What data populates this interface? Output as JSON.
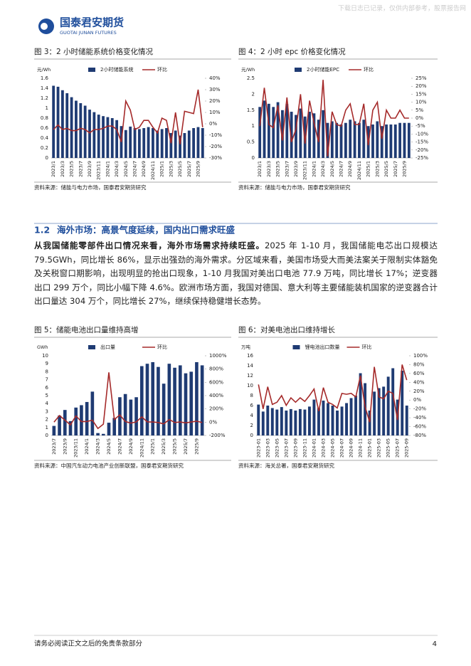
{
  "header": {
    "logo_cn": "国泰君安期货",
    "logo_en": "GUOTAI JUNAN FUTURES",
    "watermark_top": "下载日志已记录，仅供内部参考，股票报告网"
  },
  "figures": [
    {
      "caption": "图 3：2 小时储能系统价格变化情况",
      "source": "资料来源：储能与电力市场，国泰君安期货研究",
      "chart": {
        "type": "bar_line",
        "unit": "元/Wh",
        "categories": [
          "2023/1",
          null,
          "2023/3",
          null,
          "2023/5",
          null,
          "2023/7",
          null,
          "2023/9",
          null,
          "2023/11",
          null,
          "2024/1",
          null,
          "2024/3",
          null,
          "2024/5",
          null,
          "2024/7",
          null,
          "2024/9",
          null,
          "2024/11",
          null,
          "2025/1",
          null,
          "2025/3",
          null,
          "2025/5",
          null,
          "2025/7",
          null,
          "2025/9",
          null
        ],
        "series": [
          {
            "name": "2小时储能系统",
            "color": "#1f3b73",
            "values": [
              1.45,
              1.43,
              1.36,
              1.3,
              1.22,
              1.15,
              1.1,
              1.05,
              0.97,
              0.92,
              0.87,
              0.84,
              0.82,
              0.8,
              0.76,
              0.64,
              0.56,
              0.63,
              0.6,
              0.58,
              0.6,
              0.62,
              0.6,
              0.55,
              0.58,
              0.6,
              0.5,
              0.55,
              0.45,
              0.5,
              0.55,
              0.6,
              0.62,
              0.6
            ]
          },
          {
            "name": "环比",
            "color": "#a52a2a",
            "axis": "y2",
            "values": [
              -5,
              -1,
              -5,
              -4,
              -6,
              -6,
              -4,
              -5,
              -8,
              -5,
              -5,
              -4,
              -2,
              -2,
              -5,
              -16,
              20,
              12,
              -5,
              -3,
              3,
              3,
              -3,
              -8,
              5,
              3,
              -17,
              10,
              -18,
              11,
              10,
              9,
              30,
              -3
            ]
          }
        ],
        "ylim": [
          0,
          1.6
        ],
        "yticks": [
          0,
          0.2,
          0.4,
          0.6,
          0.8,
          1,
          1.2,
          1.4,
          1.6
        ],
        "y2lim": [
          -30,
          40
        ],
        "y2ticks": [
          {
            "value": -30,
            "label": "-30%"
          },
          {
            "value": -20,
            "label": "-20%"
          },
          {
            "value": -10,
            "label": "-10%"
          },
          {
            "value": 0,
            "label": "0%"
          },
          {
            "value": 10,
            "label": "10%"
          },
          {
            "value": 20,
            "label": "20%"
          },
          {
            "value": 30,
            "label": "30%"
          },
          {
            "value": 40,
            "label": "40%"
          }
        ]
      }
    },
    {
      "caption": "图 4：2 小时 epc 价格变化情况",
      "source": "资料来源：储能与电力市场，国泰君安期货研究",
      "chart": {
        "type": "bar_line",
        "unit": "元/Wh",
        "categories": [
          "2023/1",
          null,
          "2023/3",
          null,
          "2023/5",
          null,
          "2023/7",
          null,
          "2023/9",
          null,
          "2023/11",
          null,
          "2024/1",
          null,
          "2024/3",
          null,
          "2024/5",
          null,
          "2024/7",
          null,
          "2024/9",
          null,
          "2024/11",
          null,
          "2025/1",
          null,
          "2025/3",
          null,
          "2025/5",
          null,
          "2025/7",
          null,
          "2025/9",
          null
        ],
        "series": [
          {
            "name": "2小时储能EPC",
            "color": "#1f3b73",
            "values": [
              1.6,
              1.8,
              1.7,
              1.6,
              1.75,
              1.5,
              1.7,
              1.45,
              1.35,
              1.55,
              1.3,
              1.45,
              1.4,
              1.2,
              1.5,
              1.1,
              1.15,
              1.1,
              1.05,
              1.1,
              1.2,
              1.15,
              1.1,
              1.2,
              1.0,
              1.05,
              1.15,
              1.0,
              1.05,
              1.05,
              1.05,
              1.1,
              1.1,
              1.1
            ]
          },
          {
            "name": "环比",
            "color": "#a52a2a",
            "axis": "y2",
            "values": [
              -5,
              19,
              -4,
              -6,
              8,
              -14,
              13,
              -15,
              -7,
              15,
              -16,
              11,
              -3,
              -15,
              24,
              -24,
              4,
              -4,
              -5,
              5,
              9,
              -4,
              -4,
              9,
              -17,
              5,
              10,
              -13,
              5,
              0,
              0,
              5,
              0,
              0
            ]
          }
        ],
        "ylim": [
          0,
          2.5
        ],
        "yticks": [
          0,
          0.5,
          1,
          1.5,
          2,
          2.5
        ],
        "y2lim": [
          -25,
          25
        ],
        "y2ticks": [
          {
            "value": -25,
            "label": "-25%"
          },
          {
            "value": -20,
            "label": "-20%"
          },
          {
            "value": -15,
            "label": "-15%"
          },
          {
            "value": -10,
            "label": "-10%"
          },
          {
            "value": -5,
            "label": "-5%"
          },
          {
            "value": 0,
            "label": "0%"
          },
          {
            "value": 5,
            "label": "5%"
          },
          {
            "value": 10,
            "label": "10%"
          },
          {
            "value": 15,
            "label": "15%"
          },
          {
            "value": 20,
            "label": "20%"
          },
          {
            "value": 25,
            "label": "25%"
          }
        ]
      }
    },
    {
      "caption": "图 5：储能电池出口量维持高增",
      "source": "资料来源：中国汽车动力电池产业创新联盟，国泰君安期货研究",
      "chart": {
        "type": "bar_line",
        "unit": "GWh",
        "categories": [
          "2023/7",
          null,
          "2023/9",
          null,
          "2023/11",
          null,
          "2024/1",
          null,
          "2024/3",
          null,
          "2024/5",
          null,
          "2024/7",
          null,
          "2024/9",
          null,
          "2024/11",
          null,
          "2025/1",
          null,
          "2025/3",
          null,
          "2025/5",
          null,
          "2025/7",
          null,
          "2025/9",
          null
        ],
        "series": [
          {
            "name": "出口量",
            "color": "#1f3b73",
            "values": [
              1.2,
              2.5,
              3.2,
              1.8,
              3.5,
              3.8,
              4.2,
              5.5,
              0.3,
              0.2,
              1.6,
              2.2,
              4.8,
              5.2,
              4.5,
              4.8,
              8.7,
              9,
              9.2,
              8.6,
              6.5,
              9,
              8.5,
              8.8,
              7.8,
              8,
              9.2,
              8.8
            ]
          },
          {
            "name": "环比",
            "color": "#a52a2a",
            "axis": "y2",
            "values": [
              0,
              100,
              30,
              -40,
              95,
              10,
              10,
              30,
              -95,
              -30,
              750,
              40,
              110,
              10,
              -15,
              5,
              80,
              5,
              2,
              -5,
              -25,
              40,
              -5,
              3,
              -10,
              3,
              15,
              -5
            ]
          }
        ],
        "ylim": [
          0,
          10
        ],
        "yticks": [
          0,
          1,
          2,
          3,
          4,
          5,
          6,
          7,
          8,
          9,
          10
        ],
        "y2lim": [
          -200,
          1000
        ],
        "y2ticks": [
          {
            "value": -200,
            "label": "-200%"
          },
          {
            "value": 0,
            "label": "0%"
          },
          {
            "value": 200,
            "label": "200%"
          },
          {
            "value": 400,
            "label": "400%"
          },
          {
            "value": 600,
            "label": "600%"
          },
          {
            "value": 800,
            "label": "800%"
          },
          {
            "value": 1000,
            "label": "1000%"
          }
        ]
      }
    },
    {
      "caption": "图 6：对美电池出口维持增长",
      "source": "资料来源：海关总署，国泰君安期货研究",
      "chart": {
        "type": "bar_line",
        "unit": "万吨",
        "categories": [
          "2023-01",
          null,
          "2023-03",
          null,
          "2023-05",
          null,
          "2023-07",
          null,
          "2023-09",
          null,
          "2023-11",
          null,
          "2024-01",
          null,
          "2024-03",
          null,
          "2024-05",
          null,
          "2024-07",
          null,
          "2024-09",
          null,
          "2024-11",
          null,
          "2025-01",
          null,
          "2025-03",
          null,
          "2025-05",
          null,
          "2025-07",
          null,
          "2025-09"
        ],
        "series": [
          {
            "name": "锂电池出口数量",
            "color": "#1f3b73",
            "values": [
              6.2,
              4.8,
              6.0,
              5.5,
              5.2,
              5.7,
              5.0,
              5.3,
              5.0,
              5.3,
              5.2,
              5.8,
              7.2,
              5.5,
              7.0,
              6.5,
              6.0,
              5.0,
              5.8,
              6.5,
              7.5,
              8.0,
              12.5,
              10.5,
              5.0,
              8.8,
              9.5,
              9.8,
              11.8,
              13.5,
              7.2,
              13.0,
              6.0
            ]
          },
          {
            "name": "环比",
            "color": "#a52a2a",
            "axis": "y2",
            "values": [
              35,
              -20,
              30,
              -10,
              -5,
              10,
              -12,
              5,
              -5,
              5,
              -3,
              10,
              25,
              -25,
              28,
              -5,
              -10,
              -18,
              15,
              13,
              15,
              7,
              55,
              -15,
              -50,
              75,
              7,
              3,
              20,
              15,
              -45,
              80,
              45
            ]
          }
        ],
        "ylim": [
          0,
          16
        ],
        "yticks": [
          0,
          2,
          4,
          6,
          8,
          10,
          12,
          14,
          16
        ],
        "y2lim": [
          -80,
          100
        ],
        "y2ticks": [
          {
            "value": -80,
            "label": "-80%"
          },
          {
            "value": -60,
            "label": "-60%"
          },
          {
            "value": -40,
            "label": "-40%"
          },
          {
            "value": -20,
            "label": "-20%"
          },
          {
            "value": 0,
            "label": "0%"
          },
          {
            "value": 20,
            "label": "20%"
          },
          {
            "value": 40,
            "label": "40%"
          },
          {
            "value": 60,
            "label": "60%"
          },
          {
            "value": 80,
            "label": "80%"
          },
          {
            "value": 100,
            "label": "100%"
          }
        ]
      }
    }
  ],
  "section": {
    "number": "1.2",
    "title": "海外市场：高景气度延续，国内出口需求旺盛"
  },
  "paragraph": {
    "lead": "从我国储能零部件出口情况来看，海外市场需求持续旺盛。",
    "body": "2025 年 1-10 月，我国储能电芯出口规模达 79.5GWh，同比增长 86%，显示出强劲的海外需求。分区域来看，美国市场受大而美法案关于限制实体豁免及关税窗口期影响，出现明显的抢出口现象，1-10 月我国对美出口电池 77.9 万吨，同比增长 17%；逆变器出口 299 万个，同比小幅下降 4.6%。欧洲市场方面，我国对德国、意大利等主要储能装机国家的逆变器合计出口量达 304 万个，同比增长 27%，继续保持稳健增长态势。"
  },
  "footer": {
    "disclaimer": "请务必阅读正文之后的免责条款部分",
    "page": "4"
  }
}
